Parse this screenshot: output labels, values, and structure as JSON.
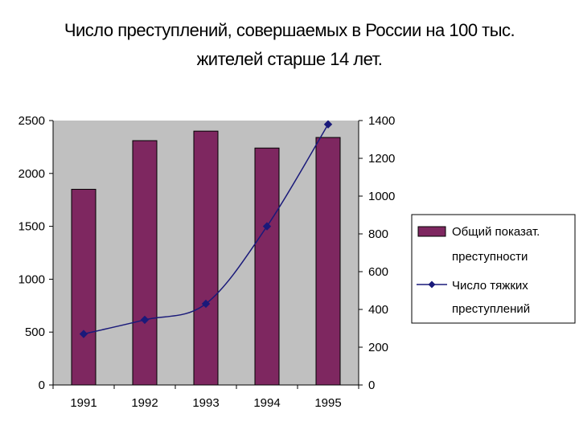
{
  "chart_data": {
    "type": "bar",
    "title_lines": [
      "Число преступлений, совершаемых в России на 100 тыс.",
      "жителей старше 14 лет."
    ],
    "categories": [
      "1991",
      "1992",
      "1993",
      "1994",
      "1995"
    ],
    "series": [
      {
        "name": "Общий показат. преступности",
        "name_lines": [
          "Общий показат.",
          "преступности"
        ],
        "type": "bar",
        "axis": "left",
        "color": "#7e2760",
        "values": [
          1850,
          2310,
          2400,
          2240,
          2340
        ]
      },
      {
        "name": "Число тяжких преступлений",
        "name_lines": [
          "Число тяжких",
          "преступлений"
        ],
        "type": "line",
        "axis": "right",
        "color": "#1a1a7a",
        "values": [
          270,
          345,
          430,
          840,
          1380
        ]
      }
    ],
    "y_left": {
      "min": 0,
      "max": 2500,
      "ticks": [
        "0",
        "500",
        "1000",
        "1500",
        "2000",
        "2500"
      ]
    },
    "y_right": {
      "min": 0,
      "max": 1400,
      "ticks": [
        "0",
        "200",
        "400",
        "600",
        "800",
        "1000",
        "1200",
        "1400"
      ]
    },
    "plot_background": "#c0c0c0",
    "legend_position": "right",
    "grid": false
  }
}
